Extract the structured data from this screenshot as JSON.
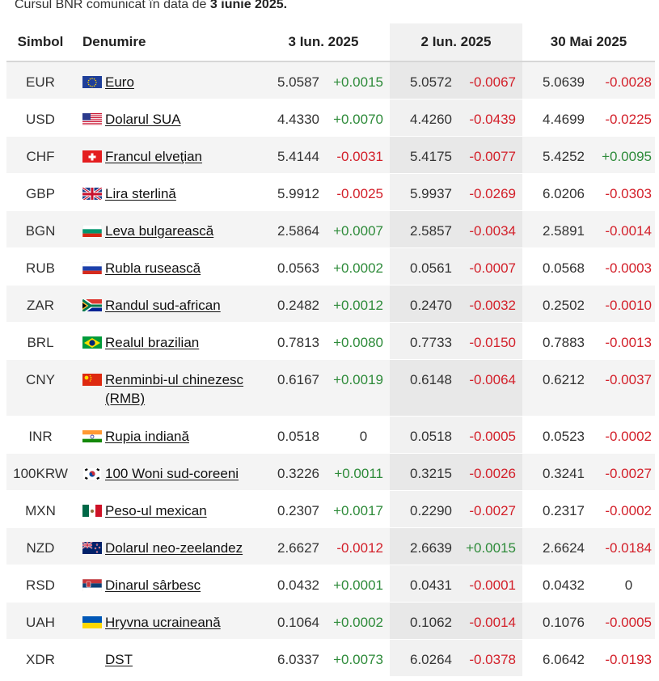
{
  "caption": {
    "prefix": "Cursul BNR comunicat în data de",
    "date": "3 iunie 2025."
  },
  "headers": {
    "symbol": "Simbol",
    "name": "Denumire",
    "dates": [
      "3 Iun. 2025",
      "2 Iun. 2025",
      "30 Mai 2025"
    ]
  },
  "colors": {
    "positive": "#2e8b3a",
    "negative": "#d3202a",
    "shaded_column": "#e8e8e8"
  },
  "rows": [
    {
      "symbol": "EUR",
      "name": "Euro",
      "flag": "eu-flag",
      "v1": "5.0587",
      "d1": "+0.0015",
      "v2": "5.0572",
      "d2": "-0.0067",
      "v3": "5.0639",
      "d3": "-0.0028"
    },
    {
      "symbol": "USD",
      "name": "Dolarul SUA",
      "flag": "us-flag",
      "v1": "4.4330",
      "d1": "+0.0070",
      "v2": "4.4260",
      "d2": "-0.0439",
      "v3": "4.4699",
      "d3": "-0.0225"
    },
    {
      "symbol": "CHF",
      "name": "Francul elveţian",
      "flag": "ch-flag",
      "v1": "5.4144",
      "d1": "-0.0031",
      "v2": "5.4175",
      "d2": "-0.0077",
      "v3": "5.4252",
      "d3": "+0.0095"
    },
    {
      "symbol": "GBP",
      "name": "Lira sterlină",
      "flag": "gb-flag",
      "v1": "5.9912",
      "d1": "-0.0025",
      "v2": "5.9937",
      "d2": "-0.0269",
      "v3": "6.0206",
      "d3": "-0.0303"
    },
    {
      "symbol": "BGN",
      "name": "Leva bulgarească",
      "flag": "bg-flag",
      "v1": "2.5864",
      "d1": "+0.0007",
      "v2": "2.5857",
      "d2": "-0.0034",
      "v3": "2.5891",
      "d3": "-0.0014"
    },
    {
      "symbol": "RUB",
      "name": "Rubla rusească",
      "flag": "ru-flag",
      "v1": "0.0563",
      "d1": "+0.0002",
      "v2": "0.0561",
      "d2": "-0.0007",
      "v3": "0.0568",
      "d3": "-0.0003"
    },
    {
      "symbol": "ZAR",
      "name": "Randul sud-african",
      "flag": "za-flag",
      "v1": "0.2482",
      "d1": "+0.0012",
      "v2": "0.2470",
      "d2": "-0.0032",
      "v3": "0.2502",
      "d3": "-0.0010"
    },
    {
      "symbol": "BRL",
      "name": "Realul brazilian",
      "flag": "br-flag",
      "v1": "0.7813",
      "d1": "+0.0080",
      "v2": "0.7733",
      "d2": "-0.0150",
      "v3": "0.7883",
      "d3": "-0.0013"
    },
    {
      "symbol": "CNY",
      "name": "Renminbi-ul chinezesc (RMB)",
      "flag": "cn-flag",
      "v1": "0.6167",
      "d1": "+0.0019",
      "v2": "0.6148",
      "d2": "-0.0064",
      "v3": "0.6212",
      "d3": "-0.0037"
    },
    {
      "symbol": "INR",
      "name": "Rupia indiană",
      "flag": "in-flag",
      "v1": "0.0518",
      "d1": "0",
      "v2": "0.0518",
      "d2": "-0.0005",
      "v3": "0.0523",
      "d3": "-0.0002"
    },
    {
      "symbol": "100KRW",
      "name": "100 Woni sud-coreeni",
      "flag": "kr-flag",
      "v1": "0.3226",
      "d1": "+0.0011",
      "v2": "0.3215",
      "d2": "-0.0026",
      "v3": "0.3241",
      "d3": "-0.0027"
    },
    {
      "symbol": "MXN",
      "name": "Peso-ul mexican",
      "flag": "mx-flag",
      "v1": "0.2307",
      "d1": "+0.0017",
      "v2": "0.2290",
      "d2": "-0.0027",
      "v3": "0.2317",
      "d3": "-0.0002"
    },
    {
      "symbol": "NZD",
      "name": "Dolarul neo-zeelandez",
      "flag": "nz-flag",
      "v1": "2.6627",
      "d1": "-0.0012",
      "v2": "2.6639",
      "d2": "+0.0015",
      "v3": "2.6624",
      "d3": "-0.0184"
    },
    {
      "symbol": "RSD",
      "name": "Dinarul sârbesc",
      "flag": "rs-flag",
      "v1": "0.0432",
      "d1": "+0.0001",
      "v2": "0.0431",
      "d2": "-0.0001",
      "v3": "0.0432",
      "d3": "0"
    },
    {
      "symbol": "UAH",
      "name": "Hryvna ucraineană",
      "flag": "ua-flag",
      "v1": "0.1064",
      "d1": "+0.0002",
      "v2": "0.1062",
      "d2": "-0.0014",
      "v3": "0.1076",
      "d3": "-0.0005"
    },
    {
      "symbol": "XDR",
      "name": "DST",
      "flag": "",
      "v1": "6.0337",
      "d1": "+0.0073",
      "v2": "6.0264",
      "d2": "-0.0378",
      "v3": "6.0642",
      "d3": "-0.0193"
    }
  ]
}
